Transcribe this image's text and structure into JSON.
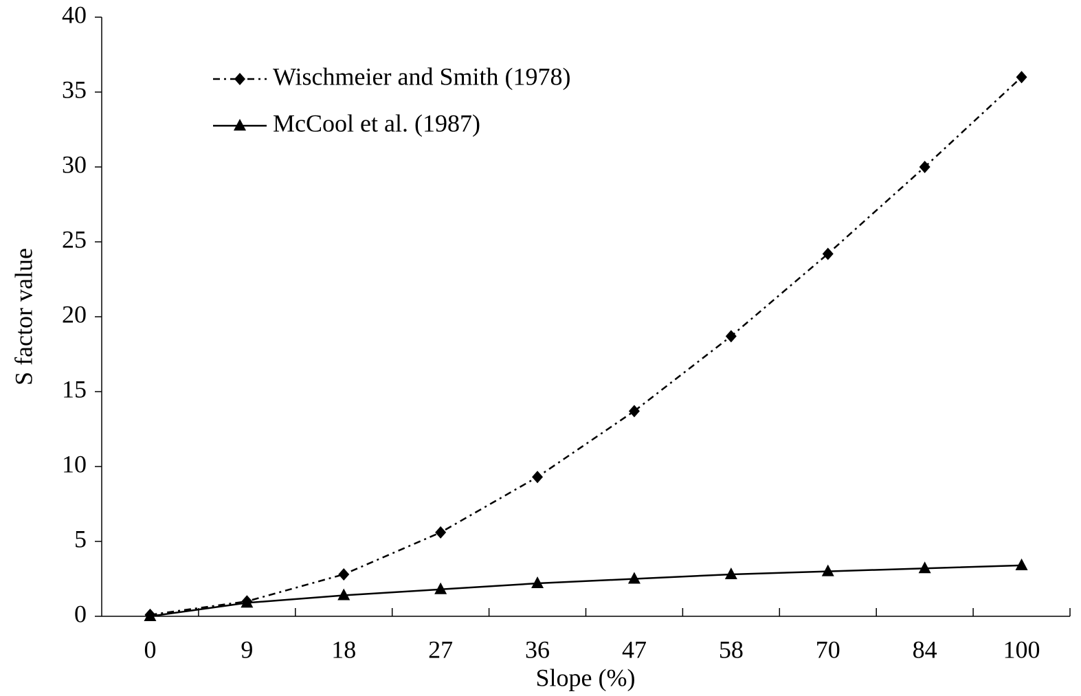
{
  "chart_data": {
    "type": "line",
    "x_label": "Slope (%)",
    "y_label": "S factor value",
    "categories": [
      "0",
      "9",
      "18",
      "27",
      "36",
      "47",
      "58",
      "70",
      "84",
      "100"
    ],
    "series": [
      {
        "name": "Wischmeier and Smith (1978)",
        "color": "#000000",
        "marker": "diamond",
        "line_style": "dashdot",
        "values": [
          0.1,
          1.0,
          2.8,
          5.6,
          9.3,
          13.7,
          18.7,
          24.2,
          30.0,
          36.0
        ]
      },
      {
        "name": "McCool et al. (1987)",
        "color": "#000000",
        "marker": "triangle",
        "line_style": "solid",
        "values": [
          0,
          0.9,
          1.4,
          1.8,
          2.2,
          2.5,
          2.8,
          3.0,
          3.2,
          3.4
        ]
      }
    ],
    "ylim": [
      0,
      40
    ],
    "yticks": [
      0,
      5,
      10,
      15,
      20,
      25,
      30,
      35,
      40
    ],
    "grid": false,
    "legend": "upper left"
  }
}
